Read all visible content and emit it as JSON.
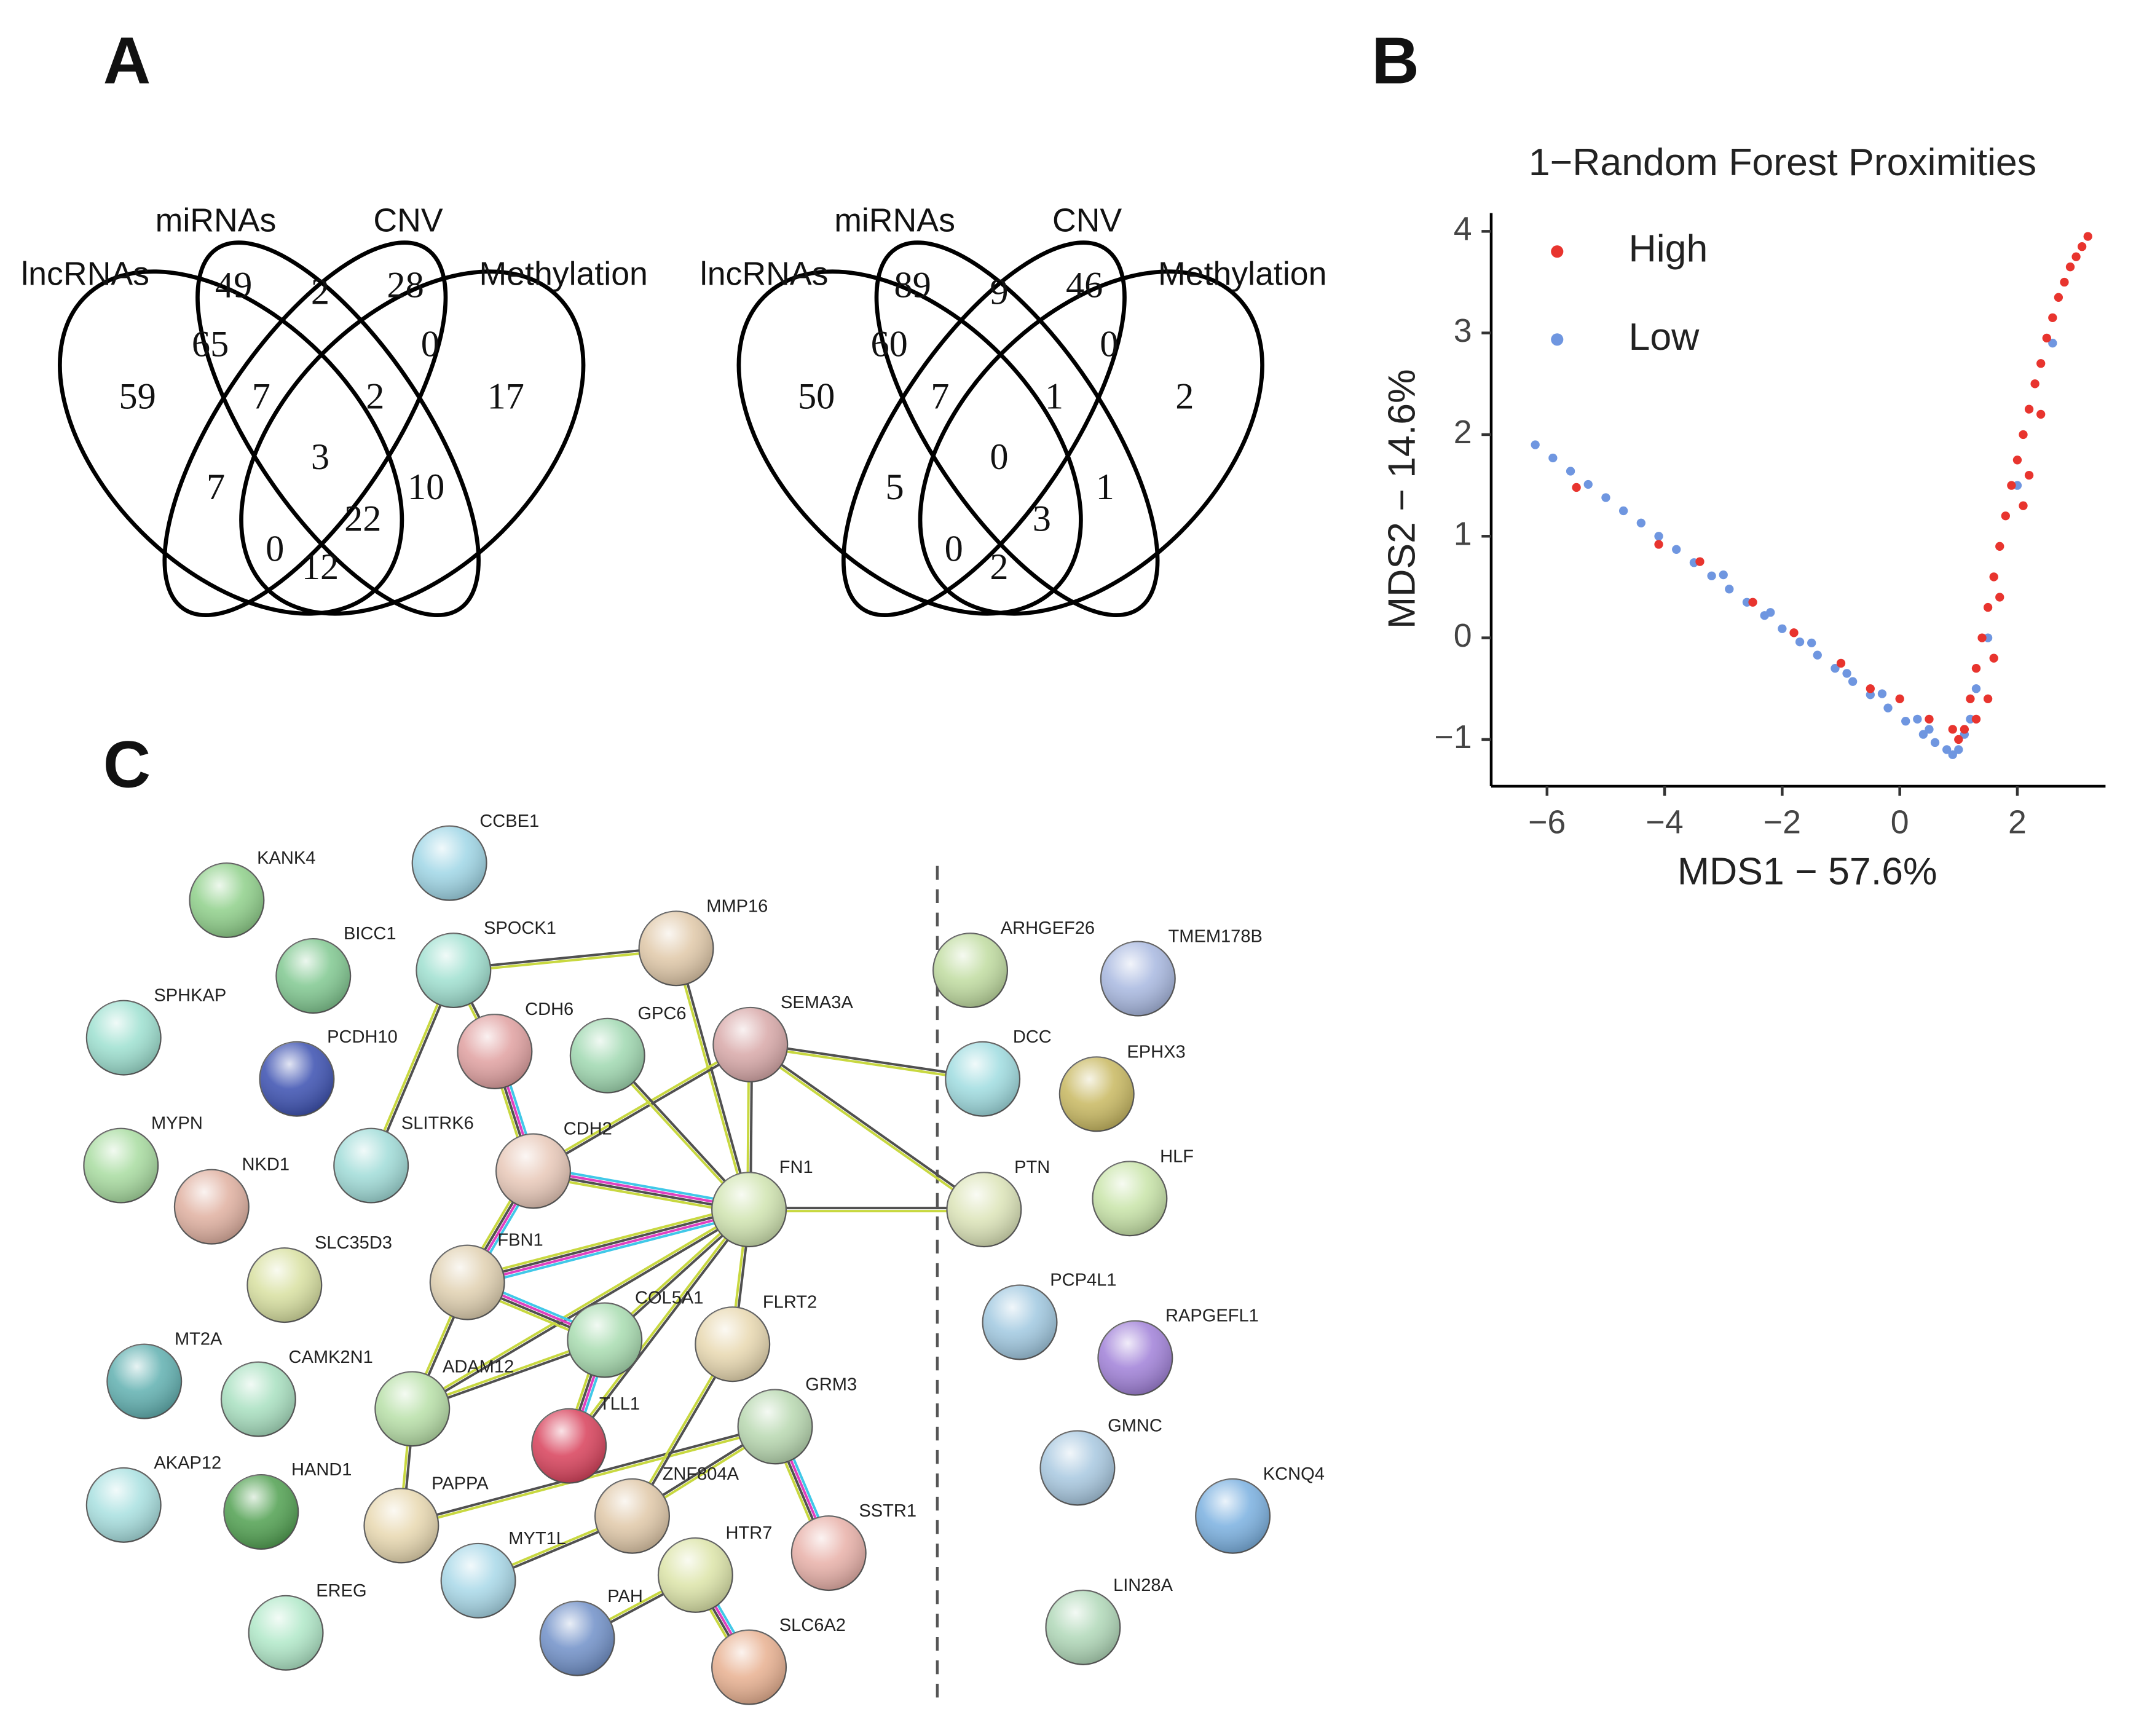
{
  "panel_labels": [
    "A",
    "B",
    "C"
  ],
  "chart_data": [
    {
      "type": "venn",
      "sets": [
        "lncRNAs",
        "miRNAs",
        "CNV",
        "Methylation"
      ],
      "values": [
        59,
        49,
        28,
        17,
        65,
        2,
        0,
        7,
        7,
        2,
        10,
        3,
        0,
        22,
        12
      ]
    },
    {
      "type": "venn",
      "sets": [
        "lncRNAs",
        "miRNAs",
        "CNV",
        "Methylation"
      ],
      "values": [
        50,
        89,
        46,
        2,
        60,
        9,
        0,
        7,
        5,
        1,
        1,
        0,
        0,
        3,
        2
      ]
    },
    {
      "type": "scatter",
      "title": "1−Random Forest Proximities",
      "xlabel": "MDS1 − 57.6%",
      "ylabel": "MDS2 − 14.6%",
      "legend": "upper left",
      "xlim": [
        -6.95,
        3.5
      ],
      "ylim": [
        -1.46,
        4.18
      ],
      "xticks": [
        {
          "value": -6,
          "label": "−6"
        },
        {
          "value": -4,
          "label": "−4"
        },
        {
          "value": -2,
          "label": "−2"
        },
        0,
        2
      ],
      "yticks": [
        {
          "value": -1,
          "label": "−1"
        },
        0,
        1,
        2,
        3,
        4
      ],
      "series": [
        {
          "name": "Low",
          "color": "#6f96e0",
          "x": [
            -6.2,
            -5.9,
            -5.6,
            -5.3,
            -5.0,
            -4.7,
            -4.4,
            -4.1,
            -3.8,
            -3.5,
            -3.2,
            -2.9,
            -2.6,
            -2.3,
            -2.0,
            -1.7,
            -1.4,
            -1.1,
            -0.8,
            -0.5,
            -0.2,
            0.1,
            0.4,
            0.6,
            0.8,
            0.9,
            1.0,
            1.1,
            1.2,
            1.3,
            -3.0,
            -2.2,
            -1.5,
            -0.9,
            -0.3,
            0.3,
            1.5,
            2.0,
            2.6,
            0.5
          ],
          "y": [
            1.9,
            1.77,
            1.64,
            1.51,
            1.38,
            1.25,
            1.13,
            1.0,
            0.87,
            0.74,
            0.61,
            0.48,
            0.35,
            0.22,
            0.09,
            -0.04,
            -0.17,
            -0.3,
            -0.43,
            -0.56,
            -0.69,
            -0.82,
            -0.95,
            -1.03,
            -1.1,
            -1.15,
            -1.1,
            -0.95,
            -0.8,
            -0.5,
            0.62,
            0.25,
            -0.05,
            -0.35,
            -0.55,
            -0.8,
            0.0,
            1.5,
            2.9,
            -0.9
          ]
        },
        {
          "name": "High",
          "color": "#e8342e",
          "x": [
            1.0,
            1.1,
            1.2,
            1.3,
            1.4,
            1.5,
            1.6,
            1.7,
            1.8,
            1.9,
            2.0,
            2.1,
            2.2,
            2.3,
            2.4,
            2.5,
            2.6,
            2.7,
            2.8,
            2.9,
            3.0,
            3.1,
            3.2,
            1.5,
            1.3,
            0.9,
            0.5,
            0.0,
            -0.5,
            -1.0,
            -1.8,
            -2.5,
            -3.4,
            -4.1,
            -5.5,
            1.7,
            2.1,
            2.4,
            1.6,
            2.2
          ],
          "y": [
            -1.0,
            -0.9,
            -0.6,
            -0.3,
            0.0,
            0.3,
            0.6,
            0.9,
            1.2,
            1.5,
            1.75,
            2.0,
            2.25,
            2.5,
            2.7,
            2.95,
            3.15,
            3.35,
            3.5,
            3.65,
            3.75,
            3.85,
            3.95,
            -0.6,
            -0.8,
            -0.9,
            -0.8,
            -0.6,
            -0.5,
            -0.25,
            0.05,
            0.35,
            0.75,
            0.92,
            1.48,
            0.4,
            1.3,
            2.2,
            -0.2,
            1.6
          ]
        }
      ]
    }
  ],
  "network": {
    "nodes": [
      "KANK4",
      "CCBE1",
      "BICC1",
      "SPOCK1",
      "MMP16",
      "SPHKAP",
      "PCDH10",
      "CDH6",
      "GPC6",
      "SEMA3A",
      "MYPN",
      "NKD1",
      "SLITRK6",
      "CDH2",
      "FN1",
      "SLC35D3",
      "FBN1",
      "COL5A1",
      "FLRT2",
      "MT2A",
      "CAMK2N1",
      "ADAM12",
      "TLL1",
      "GRM3",
      "AKAP12",
      "HAND1",
      "PAPPA",
      "ZNF804A",
      "SSTR1",
      "MYT1L",
      "HTR7",
      "EREG",
      "PAH",
      "SLC6A2",
      "ARHGEF26",
      "TMEM178B",
      "DCC",
      "EPHX3",
      "PTN",
      "HLF",
      "PCP4L1",
      "RAPGEFL1",
      "GMNC",
      "KCNQ4",
      "LIN28A"
    ]
  }
}
